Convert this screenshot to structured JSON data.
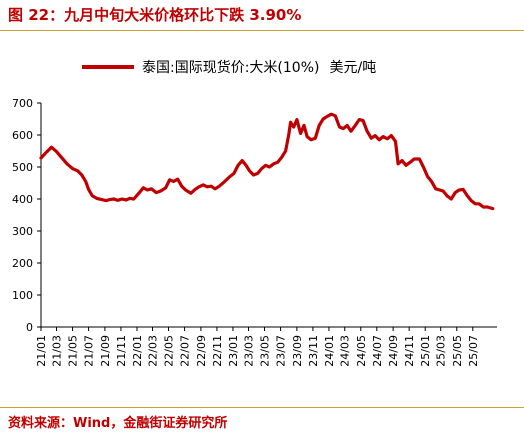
{
  "figure": {
    "title": "图 22：九月中旬大米价格环比下跌 3.90%",
    "source": "资料来源：Wind，金融街证券研究所"
  },
  "colors": {
    "accent": "#c00000",
    "series": "#c00000",
    "rule": "#c9a23a",
    "axis": "#000000"
  },
  "chart_data": {
    "type": "line",
    "title": "",
    "xlabel": "",
    "ylabel": "",
    "ylim": [
      0,
      700
    ],
    "yticks": [
      0,
      100,
      200,
      300,
      400,
      500,
      600,
      700
    ],
    "grid": false,
    "legend_position": "top",
    "categories": [
      "21/01",
      "21/03",
      "21/05",
      "21/07",
      "21/09",
      "21/11",
      "22/01",
      "22/03",
      "22/05",
      "22/07",
      "22/09",
      "22/11",
      "23/01",
      "23/03",
      "23/05",
      "23/07",
      "23/09",
      "23/11",
      "24/01",
      "24/03",
      "24/05",
      "24/07",
      "24/09",
      "24/11",
      "25/01",
      "25/03",
      "25/05",
      "25/07"
    ],
    "series": [
      {
        "name": "泰国:国际现货价:大米(10%)",
        "unit": "美元/吨",
        "color": "#c00000",
        "points": [
          [
            "2021-01-01",
            528
          ],
          [
            "2021-01-20",
            545
          ],
          [
            "2021-02-10",
            562
          ],
          [
            "2021-03-01",
            548
          ],
          [
            "2021-03-20",
            530
          ],
          [
            "2021-04-10",
            510
          ],
          [
            "2021-05-01",
            495
          ],
          [
            "2021-05-20",
            488
          ],
          [
            "2021-06-05",
            475
          ],
          [
            "2021-06-20",
            455
          ],
          [
            "2021-07-01",
            430
          ],
          [
            "2021-07-15",
            410
          ],
          [
            "2021-08-01",
            402
          ],
          [
            "2021-08-20",
            398
          ],
          [
            "2021-09-05",
            395
          ],
          [
            "2021-09-20",
            398
          ],
          [
            "2021-10-05",
            400
          ],
          [
            "2021-10-20",
            396
          ],
          [
            "2021-11-05",
            400
          ],
          [
            "2021-11-20",
            397
          ],
          [
            "2021-12-05",
            402
          ],
          [
            "2021-12-20",
            400
          ],
          [
            "2022-01-10",
            420
          ],
          [
            "2022-01-25",
            435
          ],
          [
            "2022-02-10",
            428
          ],
          [
            "2022-02-25",
            432
          ],
          [
            "2022-03-15",
            420
          ],
          [
            "2022-04-01",
            425
          ],
          [
            "2022-04-20",
            435
          ],
          [
            "2022-05-05",
            460
          ],
          [
            "2022-05-20",
            455
          ],
          [
            "2022-06-05",
            462
          ],
          [
            "2022-06-20",
            440
          ],
          [
            "2022-07-05",
            428
          ],
          [
            "2022-07-25",
            418
          ],
          [
            "2022-08-10",
            430
          ],
          [
            "2022-08-25",
            438
          ],
          [
            "2022-09-10",
            444
          ],
          [
            "2022-09-25",
            438
          ],
          [
            "2022-10-10",
            440
          ],
          [
            "2022-10-25",
            432
          ],
          [
            "2022-11-10",
            440
          ],
          [
            "2022-12-01",
            455
          ],
          [
            "2022-12-20",
            470
          ],
          [
            "2023-01-05",
            480
          ],
          [
            "2023-01-20",
            505
          ],
          [
            "2023-02-05",
            520
          ],
          [
            "2023-02-20",
            505
          ],
          [
            "2023-03-05",
            488
          ],
          [
            "2023-03-20",
            475
          ],
          [
            "2023-04-05",
            480
          ],
          [
            "2023-04-20",
            495
          ],
          [
            "2023-05-05",
            505
          ],
          [
            "2023-05-20",
            500
          ],
          [
            "2023-06-05",
            510
          ],
          [
            "2023-06-20",
            515
          ],
          [
            "2023-07-05",
            530
          ],
          [
            "2023-07-20",
            550
          ],
          [
            "2023-08-01",
            600
          ],
          [
            "2023-08-08",
            640
          ],
          [
            "2023-08-20",
            625
          ],
          [
            "2023-09-01",
            648
          ],
          [
            "2023-09-15",
            605
          ],
          [
            "2023-09-28",
            630
          ],
          [
            "2023-10-10",
            595
          ],
          [
            "2023-10-25",
            585
          ],
          [
            "2023-11-10",
            590
          ],
          [
            "2023-11-25",
            630
          ],
          [
            "2023-12-10",
            650
          ],
          [
            "2023-12-25",
            658
          ],
          [
            "2024-01-10",
            665
          ],
          [
            "2024-01-25",
            660
          ],
          [
            "2024-02-10",
            625
          ],
          [
            "2024-02-25",
            620
          ],
          [
            "2024-03-10",
            630
          ],
          [
            "2024-03-25",
            612
          ],
          [
            "2024-04-10",
            630
          ],
          [
            "2024-04-25",
            648
          ],
          [
            "2024-05-10",
            645
          ],
          [
            "2024-05-25",
            612
          ],
          [
            "2024-06-10",
            590
          ],
          [
            "2024-06-25",
            598
          ],
          [
            "2024-07-10",
            585
          ],
          [
            "2024-07-25",
            595
          ],
          [
            "2024-08-10",
            588
          ],
          [
            "2024-08-25",
            598
          ],
          [
            "2024-09-10",
            580
          ],
          [
            "2024-09-20",
            510
          ],
          [
            "2024-10-05",
            520
          ],
          [
            "2024-10-20",
            505
          ],
          [
            "2024-11-05",
            515
          ],
          [
            "2024-11-20",
            525
          ],
          [
            "2024-12-10",
            525
          ],
          [
            "2024-12-25",
            500
          ],
          [
            "2025-01-10",
            470
          ],
          [
            "2025-01-25",
            455
          ],
          [
            "2025-02-10",
            432
          ],
          [
            "2025-02-25",
            428
          ],
          [
            "2025-03-10",
            425
          ],
          [
            "2025-03-25",
            410
          ],
          [
            "2025-04-10",
            400
          ],
          [
            "2025-04-25",
            420
          ],
          [
            "2025-05-10",
            428
          ],
          [
            "2025-05-25",
            430
          ],
          [
            "2025-06-10",
            410
          ],
          [
            "2025-06-25",
            395
          ],
          [
            "2025-07-10",
            385
          ],
          [
            "2025-07-25",
            385
          ],
          [
            "2025-08-10",
            375
          ],
          [
            "2025-08-25",
            375
          ],
          [
            "2025-09-15",
            370
          ]
        ]
      }
    ]
  }
}
